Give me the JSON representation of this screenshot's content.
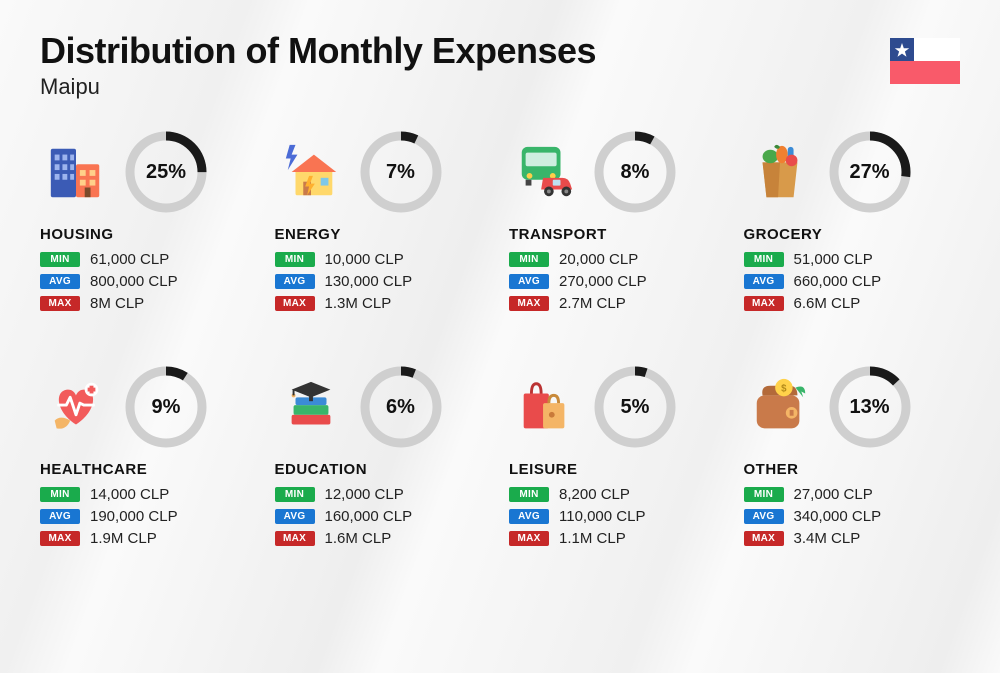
{
  "header": {
    "title": "Distribution of Monthly Expenses",
    "subtitle": "Maipu"
  },
  "flag": {
    "blue": "#2e4b8f",
    "white": "#ffffff",
    "red": "#f95a6a",
    "star": "#ffffff"
  },
  "badges": {
    "min": {
      "label": "MIN",
      "color": "#1aab4c"
    },
    "avg": {
      "label": "AVG",
      "color": "#1976d2"
    },
    "max": {
      "label": "MAX",
      "color": "#c62828"
    }
  },
  "donut": {
    "track_color": "#cfcfcf",
    "arc_color": "#1a1a1a",
    "stroke_width": 9,
    "radius": 36
  },
  "categories": [
    {
      "key": "housing",
      "name": "HOUSING",
      "percent": 25,
      "min": "61,000 CLP",
      "avg": "800,000 CLP",
      "max": "8M CLP",
      "icon": "buildings"
    },
    {
      "key": "energy",
      "name": "ENERGY",
      "percent": 7,
      "min": "10,000 CLP",
      "avg": "130,000 CLP",
      "max": "1.3M CLP",
      "icon": "energy"
    },
    {
      "key": "transport",
      "name": "TRANSPORT",
      "percent": 8,
      "min": "20,000 CLP",
      "avg": "270,000 CLP",
      "max": "2.7M CLP",
      "icon": "transport"
    },
    {
      "key": "grocery",
      "name": "GROCERY",
      "percent": 27,
      "min": "51,000 CLP",
      "avg": "660,000 CLP",
      "max": "6.6M CLP",
      "icon": "grocery"
    },
    {
      "key": "healthcare",
      "name": "HEALTHCARE",
      "percent": 9,
      "min": "14,000 CLP",
      "avg": "190,000 CLP",
      "max": "1.9M CLP",
      "icon": "healthcare"
    },
    {
      "key": "education",
      "name": "EDUCATION",
      "percent": 6,
      "min": "12,000 CLP",
      "avg": "160,000 CLP",
      "max": "1.6M CLP",
      "icon": "education"
    },
    {
      "key": "leisure",
      "name": "LEISURE",
      "percent": 5,
      "min": "8,200 CLP",
      "avg": "110,000 CLP",
      "max": "1.1M CLP",
      "icon": "leisure"
    },
    {
      "key": "other",
      "name": "OTHER",
      "percent": 13,
      "min": "27,000 CLP",
      "avg": "340,000 CLP",
      "max": "3.4M CLP",
      "icon": "other"
    }
  ]
}
